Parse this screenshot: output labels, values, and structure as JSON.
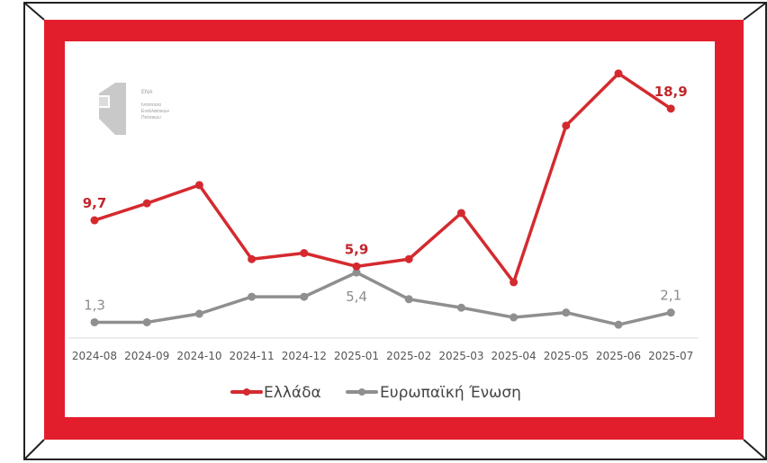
{
  "logo": {
    "title": "ΕΝΑ",
    "lines": [
      "Ινστιτούτο",
      "Εναλλακτικών",
      "Πολιτικών"
    ]
  },
  "colors": {
    "frame_red": "#e31e2c",
    "greece_line": "#d42a2f",
    "eu_line": "#8f8f8f",
    "greece_label": "#c0272d",
    "eu_label": "#8c8c8c"
  },
  "legend": [
    {
      "key": "greece",
      "label": "Ελλάδα"
    },
    {
      "key": "eu",
      "label": "Ευρωπαϊκή Ένωση"
    }
  ],
  "chart_data": {
    "type": "line",
    "title": "",
    "xlabel": "",
    "ylabel": "",
    "ylim": [
      0,
      22
    ],
    "grid": false,
    "legend_position": "bottom",
    "categories": [
      "2024-08",
      "2024-09",
      "2024-10",
      "2024-11",
      "2024-12",
      "2025-01",
      "2025-02",
      "2025-03",
      "2025-04",
      "2025-05",
      "2025-06",
      "2025-07"
    ],
    "series": [
      {
        "key": "greece",
        "name": "Ελλάδα",
        "values": [
          9.7,
          11.1,
          12.6,
          6.5,
          7.0,
          5.9,
          6.5,
          10.3,
          4.6,
          17.5,
          21.8,
          18.9
        ]
      },
      {
        "key": "eu",
        "name": "Ευρωπαϊκή Ένωση",
        "values": [
          1.3,
          1.3,
          2.0,
          3.4,
          3.4,
          5.4,
          3.2,
          2.5,
          1.7,
          2.1,
          1.1,
          2.1
        ]
      }
    ],
    "data_labels": [
      {
        "series": "greece",
        "index": 0,
        "text": "9,7",
        "position": "above"
      },
      {
        "series": "greece",
        "index": 5,
        "text": "5,9",
        "position": "above"
      },
      {
        "series": "greece",
        "index": 11,
        "text": "18,9",
        "position": "above"
      },
      {
        "series": "eu",
        "index": 0,
        "text": "1,3",
        "position": "above"
      },
      {
        "series": "eu",
        "index": 5,
        "text": "5,4",
        "position": "below"
      },
      {
        "series": "eu",
        "index": 11,
        "text": "2,1",
        "position": "above"
      }
    ]
  }
}
